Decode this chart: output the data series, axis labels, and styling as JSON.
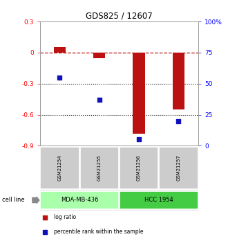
{
  "title": "GDS825 / 12607",
  "samples": [
    "GSM21254",
    "GSM21255",
    "GSM21256",
    "GSM21257"
  ],
  "log_ratio": [
    0.05,
    -0.055,
    -0.78,
    -0.55
  ],
  "percentile_rank": [
    55,
    37,
    5,
    20
  ],
  "bar_color": "#bb1111",
  "square_color": "#1111bb",
  "ylim_left": [
    -0.9,
    0.3
  ],
  "ylim_right": [
    0,
    100
  ],
  "yticks_left": [
    -0.9,
    -0.6,
    -0.3,
    0.0,
    0.3
  ],
  "yticks_left_labels": [
    "-0.9",
    "-0.6",
    "-0.3",
    "0",
    "0.3"
  ],
  "yticks_right": [
    0,
    25,
    50,
    75,
    100
  ],
  "yticks_right_labels": [
    "0",
    "25",
    "50",
    "75",
    "100%"
  ],
  "dotted_lines": [
    -0.3,
    -0.6
  ],
  "cell_lines": [
    {
      "label": "MDA-MB-436",
      "samples": [
        0,
        1
      ],
      "color": "#aaffaa"
    },
    {
      "label": "HCC 1954",
      "samples": [
        2,
        3
      ],
      "color": "#44cc44"
    }
  ],
  "cell_line_label": "cell line",
  "legend_items": [
    {
      "color": "#bb1111",
      "label": "log ratio"
    },
    {
      "color": "#1111bb",
      "label": "percentile rank within the sample"
    }
  ],
  "bg_color": "#ffffff",
  "plot_bg": "#ffffff",
  "sample_box_color": "#cccccc",
  "bar_width": 0.3,
  "square_size": 18
}
